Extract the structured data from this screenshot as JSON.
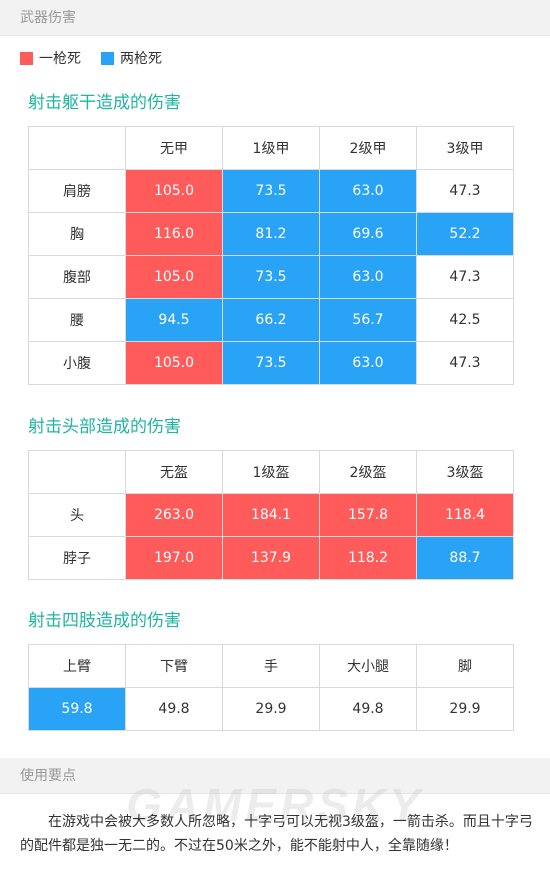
{
  "header": {
    "title": "武器伤害"
  },
  "legend": [
    {
      "label": "一枪死",
      "color": "#ff5b5b"
    },
    {
      "label": "两枪死",
      "color": "#29a3f5"
    }
  ],
  "torso": {
    "title": "射击躯干造成的伤害",
    "columns": [
      "",
      "无甲",
      "1级甲",
      "2级甲",
      "3级甲"
    ],
    "rows": [
      {
        "label": "肩膀",
        "values": [
          "105.0",
          "73.5",
          "63.0",
          "47.3"
        ],
        "kinds": [
          "red",
          "blue",
          "blue",
          ""
        ]
      },
      {
        "label": "胸",
        "values": [
          "116.0",
          "81.2",
          "69.6",
          "52.2"
        ],
        "kinds": [
          "red",
          "blue",
          "blue",
          "blue"
        ]
      },
      {
        "label": "腹部",
        "values": [
          "105.0",
          "73.5",
          "63.0",
          "47.3"
        ],
        "kinds": [
          "red",
          "blue",
          "blue",
          ""
        ]
      },
      {
        "label": "腰",
        "values": [
          "94.5",
          "66.2",
          "56.7",
          "42.5"
        ],
        "kinds": [
          "blue",
          "blue",
          "blue",
          ""
        ]
      },
      {
        "label": "小腹",
        "values": [
          "105.0",
          "73.5",
          "63.0",
          "47.3"
        ],
        "kinds": [
          "red",
          "blue",
          "blue",
          ""
        ]
      }
    ]
  },
  "head": {
    "title": "射击头部造成的伤害",
    "columns": [
      "",
      "无盔",
      "1级盔",
      "2级盔",
      "3级盔"
    ],
    "rows": [
      {
        "label": "头",
        "values": [
          "263.0",
          "184.1",
          "157.8",
          "118.4"
        ],
        "kinds": [
          "red",
          "red",
          "red",
          "red"
        ]
      },
      {
        "label": "脖子",
        "values": [
          "197.0",
          "137.9",
          "118.2",
          "88.7"
        ],
        "kinds": [
          "red",
          "red",
          "red",
          "blue"
        ]
      }
    ]
  },
  "limbs": {
    "title": "射击四肢造成的伤害",
    "columns": [
      "上臂",
      "下臂",
      "手",
      "大小腿",
      "脚"
    ],
    "values": [
      "59.8",
      "49.8",
      "29.9",
      "49.8",
      "29.9"
    ],
    "kinds": [
      "blue",
      "",
      "",
      "",
      ""
    ]
  },
  "tips": {
    "title": "使用要点",
    "text": "在游戏中会被大多数人所忽略，十字弓可以无视3级盔，一箭击杀。而且十字弓的配件都是独一无二的。不过在50米之外，能不能射中人，全靠随缘！"
  },
  "watermark": "GAMERSKY"
}
